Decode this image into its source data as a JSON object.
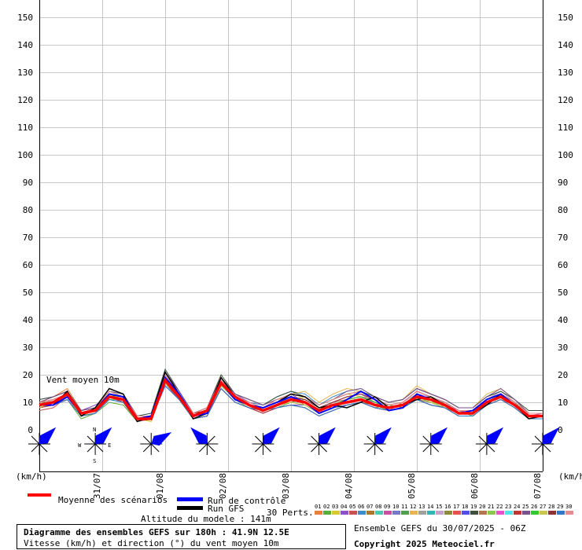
{
  "chart_data": {
    "type": "line",
    "ylim": [
      0,
      155
    ],
    "yticks": [
      0,
      10,
      20,
      30,
      40,
      50,
      60,
      70,
      80,
      90,
      100,
      110,
      120,
      130,
      140,
      150
    ],
    "unit_left": "(km/h)",
    "unit_right": "(km/h)",
    "date_ticks": [
      "31/07",
      "01/08",
      "02/08",
      "03/08",
      "04/08",
      "05/08",
      "06/08",
      "07/08"
    ],
    "annotation": "Vent moyen 10m",
    "steps": 30,
    "mean": {
      "name": "Moyenne des scénarios",
      "values": [
        9,
        10,
        13,
        6,
        7,
        12,
        11,
        4,
        4,
        18,
        12,
        5,
        7,
        17,
        12,
        9,
        7,
        9,
        11,
        10,
        7,
        9,
        10,
        11,
        9,
        8,
        9,
        12,
        11,
        9,
        6,
        6,
        10,
        12,
        9,
        5,
        5
      ]
    },
    "control": {
      "name": "Run de contrôle",
      "values": [
        9,
        9,
        12,
        6,
        7,
        13,
        12,
        4,
        5,
        19,
        13,
        5,
        6,
        17,
        11,
        9,
        8,
        10,
        12,
        10,
        6,
        8,
        11,
        14,
        11,
        7,
        8,
        13,
        11,
        9,
        6,
        7,
        11,
        13,
        9,
        5,
        5
      ]
    },
    "gfs": {
      "name": "Run GFS",
      "values": [
        9,
        9,
        14,
        5,
        8,
        15,
        13,
        3,
        5,
        21,
        13,
        4,
        6,
        19,
        12,
        9,
        8,
        10,
        13,
        12,
        8,
        9,
        8,
        10,
        12,
        8,
        9,
        11,
        12,
        9,
        6,
        6,
        9,
        13,
        9,
        4,
        5
      ]
    },
    "members": [
      [
        10,
        12,
        15,
        7,
        8,
        13,
        11,
        5,
        5,
        20,
        13,
        6,
        8,
        19,
        13,
        10,
        8,
        11,
        12,
        9,
        6,
        10,
        12,
        13,
        10,
        7,
        10,
        14,
        12,
        8,
        6,
        7,
        11,
        14,
        10,
        6,
        6
      ],
      [
        8,
        9,
        11,
        4,
        6,
        10,
        9,
        3,
        4,
        16,
        11,
        4,
        6,
        15,
        10,
        8,
        6,
        8,
        10,
        11,
        8,
        8,
        9,
        10,
        8,
        9,
        8,
        11,
        10,
        10,
        7,
        5,
        9,
        11,
        8,
        4,
        4
      ],
      [
        9,
        11,
        13,
        6,
        7,
        14,
        12,
        4,
        3,
        17,
        12,
        5,
        7,
        16,
        12,
        9,
        7,
        9,
        11,
        12,
        9,
        11,
        13,
        12,
        9,
        8,
        9,
        13,
        11,
        9,
        6,
        6,
        10,
        12,
        9,
        5,
        5
      ],
      [
        10,
        10,
        12,
        7,
        9,
        12,
        10,
        5,
        5,
        19,
        12,
        6,
        7,
        18,
        13,
        10,
        8,
        10,
        13,
        10,
        7,
        9,
        10,
        11,
        10,
        8,
        9,
        12,
        12,
        9,
        7,
        7,
        11,
        13,
        10,
        6,
        6
      ],
      [
        7,
        8,
        12,
        5,
        6,
        11,
        11,
        4,
        4,
        17,
        12,
        4,
        5,
        16,
        11,
        8,
        7,
        9,
        10,
        9,
        6,
        8,
        9,
        10,
        9,
        7,
        8,
        11,
        10,
        8,
        5,
        5,
        9,
        11,
        9,
        4,
        4
      ],
      [
        11,
        12,
        14,
        6,
        8,
        14,
        13,
        5,
        6,
        21,
        14,
        6,
        8,
        18,
        12,
        10,
        9,
        12,
        14,
        13,
        9,
        12,
        14,
        15,
        12,
        10,
        11,
        15,
        13,
        11,
        8,
        8,
        12,
        14,
        11,
        6,
        6
      ],
      [
        9,
        9,
        13,
        5,
        7,
        12,
        12,
        4,
        4,
        18,
        12,
        5,
        6,
        17,
        12,
        9,
        8,
        10,
        11,
        10,
        7,
        9,
        10,
        11,
        9,
        8,
        9,
        12,
        11,
        9,
        6,
        6,
        10,
        12,
        9,
        5,
        5
      ],
      [
        8,
        10,
        12,
        6,
        7,
        13,
        11,
        4,
        5,
        19,
        13,
        5,
        7,
        18,
        11,
        9,
        7,
        9,
        12,
        11,
        8,
        10,
        11,
        12,
        10,
        8,
        9,
        13,
        11,
        10,
        6,
        7,
        10,
        13,
        10,
        5,
        5
      ],
      [
        10,
        11,
        13,
        6,
        8,
        12,
        12,
        5,
        5,
        20,
        13,
        6,
        7,
        17,
        12,
        10,
        8,
        10,
        11,
        10,
        7,
        9,
        11,
        12,
        11,
        9,
        10,
        14,
        12,
        9,
        7,
        6,
        11,
        13,
        9,
        5,
        6
      ],
      [
        9,
        10,
        12,
        6,
        7,
        13,
        11,
        4,
        4,
        18,
        12,
        5,
        6,
        16,
        11,
        9,
        7,
        9,
        10,
        9,
        6,
        8,
        10,
        11,
        9,
        7,
        8,
        12,
        10,
        8,
        6,
        6,
        10,
        12,
        9,
        5,
        5
      ],
      [
        8,
        9,
        11,
        5,
        6,
        11,
        10,
        3,
        4,
        17,
        11,
        4,
        5,
        15,
        10,
        8,
        6,
        8,
        9,
        8,
        5,
        7,
        9,
        10,
        8,
        7,
        8,
        11,
        9,
        8,
        5,
        5,
        9,
        11,
        8,
        4,
        4
      ],
      [
        10,
        12,
        14,
        7,
        8,
        14,
        12,
        5,
        5,
        20,
        13,
        6,
        8,
        19,
        13,
        11,
        9,
        11,
        13,
        14,
        10,
        13,
        15,
        14,
        12,
        10,
        11,
        16,
        13,
        11,
        8,
        8,
        13,
        15,
        11,
        6,
        6
      ],
      [
        9,
        10,
        12,
        6,
        7,
        12,
        11,
        4,
        5,
        19,
        12,
        5,
        7,
        17,
        12,
        9,
        8,
        10,
        12,
        11,
        8,
        10,
        12,
        13,
        10,
        8,
        9,
        13,
        11,
        9,
        6,
        7,
        11,
        13,
        10,
        5,
        5
      ],
      [
        8,
        9,
        12,
        5,
        7,
        13,
        12,
        4,
        4,
        18,
        13,
        5,
        6,
        16,
        11,
        9,
        7,
        9,
        11,
        10,
        7,
        9,
        10,
        11,
        9,
        8,
        9,
        12,
        10,
        9,
        6,
        6,
        10,
        12,
        9,
        5,
        5
      ],
      [
        9,
        11,
        13,
        6,
        8,
        12,
        11,
        5,
        5,
        19,
        12,
        6,
        7,
        18,
        12,
        10,
        8,
        10,
        12,
        11,
        8,
        10,
        11,
        12,
        10,
        9,
        10,
        13,
        12,
        10,
        7,
        7,
        11,
        14,
        10,
        6,
        6
      ],
      [
        10,
        10,
        12,
        6,
        7,
        13,
        12,
        4,
        4,
        17,
        12,
        5,
        6,
        16,
        11,
        9,
        7,
        9,
        10,
        9,
        6,
        8,
        9,
        10,
        9,
        7,
        8,
        11,
        10,
        8,
        6,
        6,
        10,
        12,
        9,
        5,
        5
      ],
      [
        8,
        10,
        13,
        6,
        7,
        11,
        11,
        4,
        5,
        18,
        13,
        5,
        7,
        17,
        12,
        9,
        8,
        10,
        11,
        10,
        7,
        9,
        11,
        12,
        10,
        8,
        9,
        12,
        11,
        9,
        6,
        6,
        10,
        12,
        9,
        5,
        5
      ],
      [
        9,
        9,
        11,
        5,
        6,
        12,
        10,
        3,
        4,
        16,
        11,
        4,
        5,
        15,
        10,
        8,
        6,
        8,
        9,
        9,
        6,
        8,
        9,
        10,
        8,
        7,
        8,
        11,
        9,
        8,
        5,
        5,
        9,
        11,
        8,
        4,
        4
      ],
      [
        11,
        12,
        14,
        7,
        8,
        14,
        13,
        5,
        6,
        22,
        14,
        6,
        8,
        20,
        13,
        11,
        9,
        12,
        14,
        12,
        9,
        11,
        13,
        14,
        12,
        10,
        11,
        15,
        13,
        11,
        8,
        8,
        12,
        14,
        11,
        7,
        7
      ],
      [
        9,
        10,
        12,
        6,
        7,
        13,
        12,
        4,
        5,
        19,
        12,
        5,
        6,
        17,
        12,
        9,
        8,
        10,
        12,
        11,
        8,
        10,
        11,
        12,
        10,
        8,
        9,
        13,
        11,
        9,
        6,
        6,
        10,
        12,
        9,
        5,
        5
      ],
      [
        8,
        9,
        12,
        5,
        6,
        11,
        11,
        4,
        4,
        17,
        12,
        4,
        6,
        16,
        11,
        8,
        7,
        9,
        10,
        9,
        6,
        8,
        10,
        11,
        9,
        7,
        8,
        12,
        10,
        8,
        5,
        5,
        9,
        11,
        8,
        4,
        4
      ],
      [
        10,
        11,
        13,
        6,
        8,
        13,
        12,
        5,
        5,
        20,
        13,
        6,
        7,
        18,
        12,
        10,
        8,
        10,
        12,
        11,
        8,
        10,
        12,
        13,
        11,
        9,
        10,
        14,
        12,
        10,
        7,
        7,
        11,
        13,
        10,
        6,
        6
      ],
      [
        9,
        10,
        13,
        6,
        7,
        12,
        11,
        4,
        4,
        18,
        12,
        5,
        6,
        16,
        11,
        9,
        7,
        9,
        11,
        10,
        7,
        9,
        10,
        11,
        9,
        8,
        9,
        12,
        11,
        9,
        6,
        6,
        10,
        12,
        9,
        5,
        5
      ],
      [
        8,
        9,
        11,
        5,
        6,
        12,
        10,
        3,
        4,
        17,
        11,
        4,
        5,
        15,
        10,
        8,
        6,
        8,
        9,
        8,
        5,
        7,
        9,
        10,
        8,
        7,
        8,
        11,
        9,
        8,
        5,
        5,
        9,
        11,
        8,
        4,
        4
      ],
      [
        10,
        12,
        14,
        7,
        8,
        14,
        13,
        5,
        5,
        21,
        14,
        6,
        8,
        19,
        13,
        11,
        9,
        11,
        13,
        12,
        9,
        11,
        14,
        15,
        12,
        10,
        11,
        15,
        13,
        11,
        8,
        8,
        12,
        15,
        11,
        6,
        6
      ],
      [
        9,
        10,
        12,
        6,
        7,
        13,
        11,
        4,
        5,
        18,
        12,
        5,
        7,
        17,
        12,
        9,
        8,
        10,
        12,
        10,
        7,
        9,
        11,
        12,
        10,
        8,
        9,
        13,
        11,
        9,
        6,
        7,
        10,
        13,
        10,
        5,
        5
      ],
      [
        8,
        10,
        12,
        5,
        7,
        12,
        12,
        4,
        4,
        17,
        12,
        5,
        6,
        16,
        11,
        9,
        7,
        9,
        10,
        9,
        6,
        8,
        10,
        11,
        9,
        8,
        9,
        12,
        10,
        9,
        6,
        6,
        10,
        12,
        9,
        5,
        5
      ],
      [
        10,
        11,
        13,
        6,
        8,
        13,
        12,
        5,
        5,
        19,
        13,
        6,
        7,
        18,
        12,
        10,
        8,
        10,
        12,
        11,
        8,
        10,
        12,
        13,
        11,
        9,
        10,
        14,
        12,
        10,
        7,
        7,
        11,
        13,
        10,
        6,
        6
      ],
      [
        9,
        9,
        11,
        5,
        6,
        11,
        10,
        4,
        4,
        16,
        11,
        4,
        5,
        15,
        10,
        8,
        7,
        8,
        9,
        8,
        5,
        7,
        9,
        10,
        8,
        7,
        8,
        11,
        9,
        8,
        5,
        5,
        9,
        11,
        8,
        4,
        4
      ],
      [
        10,
        11,
        13,
        6,
        8,
        14,
        12,
        5,
        5,
        20,
        13,
        6,
        8,
        18,
        12,
        10,
        8,
        11,
        13,
        12,
        9,
        11,
        13,
        14,
        11,
        9,
        10,
        14,
        12,
        10,
        7,
        7,
        11,
        13,
        10,
        6,
        6
      ]
    ],
    "member_colors": [
      "#e6803a",
      "#5aaf3c",
      "#d8c832",
      "#8c50c8",
      "#c85050",
      "#3c8cc8",
      "#aa7828",
      "#50c8b4",
      "#c850a0",
      "#7878c8",
      "#50a050",
      "#e6b450",
      "#a0a0a0",
      "#32b4b4",
      "#c8a0c8",
      "#8c8c3c",
      "#e65050",
      "#5050e6",
      "#3c503c",
      "#b47850",
      "#8cc850",
      "#e650c8",
      "#50e6e6",
      "#c83232",
      "#78508c",
      "#32c832",
      "#c8c850",
      "#8c3232",
      "#3278c8",
      "#e68c8c"
    ],
    "direction_deg": [
      225,
      225,
      240,
      135,
      225,
      225,
      225,
      225,
      225,
      225
    ],
    "legend": {
      "mean": "Moyenne des scénarios",
      "control": "Run de contrôle",
      "gfs": "Run GFS",
      "perts": "30 Perts.",
      "perts_numbers": [
        "01",
        "02",
        "03",
        "04",
        "05",
        "06",
        "07",
        "08",
        "09",
        "10",
        "11",
        "12",
        "13",
        "14",
        "15",
        "16",
        "17",
        "18",
        "19",
        "20",
        "21",
        "22",
        "23",
        "24",
        "25",
        "26",
        "27",
        "28",
        "29",
        "30"
      ]
    },
    "altitude": "Altitude du modele : 141m",
    "info_title": "Diagramme des ensembles GEFS sur 180h : 41.9N 12.5E",
    "info_subtitle": "Vitesse (km/h) et direction (°) du vent moyen 10m",
    "ensemble_label": "Ensemble GEFS du 30/07/2025 - 06Z",
    "copyright": "Copyright 2025 Meteociel.fr"
  },
  "compass": {
    "n": "N",
    "s": "S",
    "e": "E",
    "w": "W"
  },
  "colors": {
    "mean": "#ff0000",
    "control": "#0000ff",
    "gfs": "#000000",
    "grid": "#c8c8c8",
    "arrow": "#0000ff"
  }
}
